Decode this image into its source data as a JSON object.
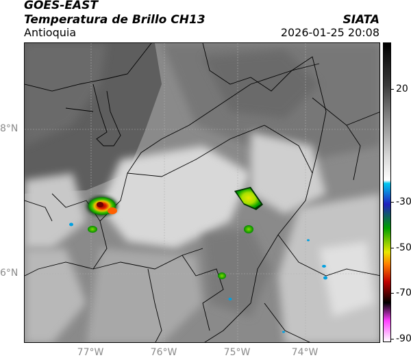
{
  "header": {
    "title_line1": "GOES-EAST",
    "title_line2": "Temperatura de Brillo CH13",
    "subtitle": "Antioquia",
    "brand": "SIATA",
    "timestamp": "2026-01-25 20:08"
  },
  "map": {
    "lat_labels": [
      "8°N",
      "6°N"
    ],
    "lon_labels": [
      "77°W",
      "76°W",
      "75°W",
      "74°W"
    ]
  },
  "colorbar": {
    "ticks": [
      "20",
      "-30",
      "-50",
      "-70",
      "-90"
    ],
    "gradient_colors": [
      "#000000",
      "#3a3a3a",
      "#8c8c8c",
      "#d8d8d8",
      "#ffffff",
      "#00c8f0",
      "#2020c0",
      "#00a000",
      "#e8e800",
      "#ff8000",
      "#c00000",
      "#000000",
      "#ff40ff",
      "#ffffff"
    ]
  }
}
